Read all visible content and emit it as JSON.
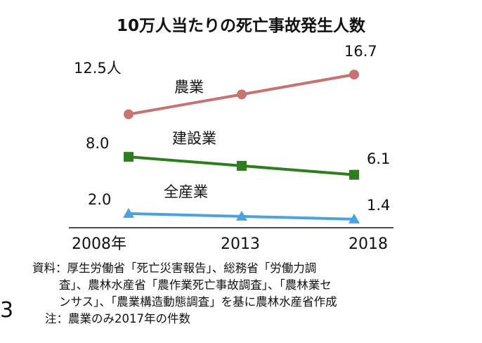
{
  "chart_data": {
    "type": "line",
    "title": "10万人当たりの死亡事故発生人数",
    "categories": [
      "2008年",
      "2013",
      "2018"
    ],
    "series": [
      {
        "name": "農業",
        "values": [
          12.5,
          14.6,
          16.7
        ],
        "color": "#c87272",
        "marker": "circle"
      },
      {
        "name": "建設業",
        "values": [
          8.0,
          7.05,
          6.1
        ],
        "color": "#2e7d1f",
        "marker": "square"
      },
      {
        "name": "全産業",
        "values": [
          2.0,
          1.7,
          1.4
        ],
        "color": "#4aa3df",
        "marker": "triangle"
      }
    ],
    "data_labels": {
      "agri_start": "12.5人",
      "agri_end": "16.7",
      "cons_start": "8.0",
      "cons_end": "6.1",
      "all_start": "2.0",
      "all_end": "1.4"
    }
  },
  "notes": {
    "line1": "資料：厚生労働省「死亡災害報告」、総務省「労働力調",
    "line2": "査」、農林水産省「農作業死亡事故調査」、「農林業セ",
    "line3": "ンサス」、「農業構造動態調査」を基に農林水産省作成",
    "line4": "注：農業のみ2017年の件数"
  },
  "side_number": "3"
}
